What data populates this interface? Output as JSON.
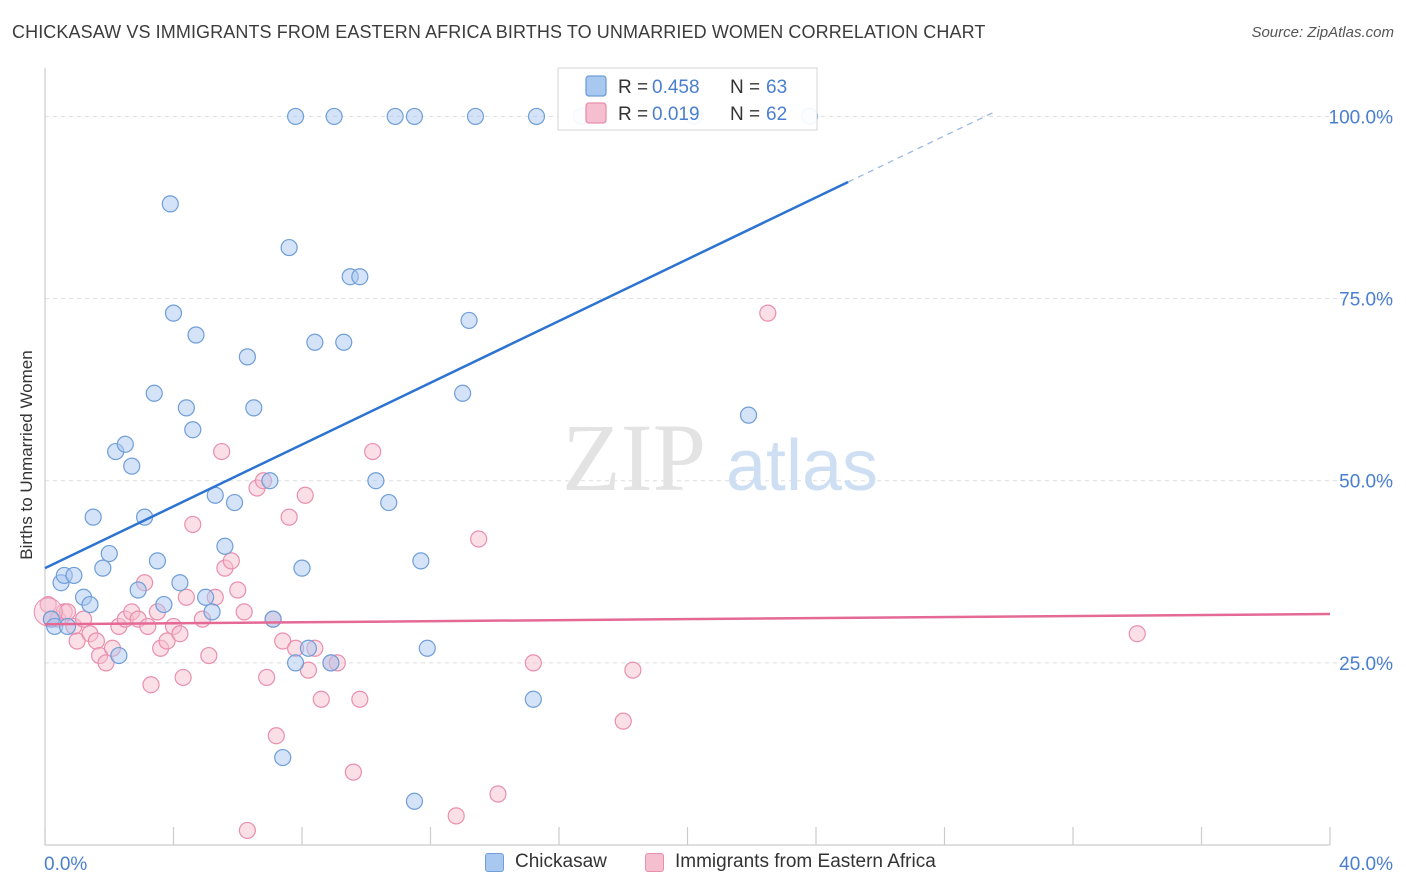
{
  "title": "CHICKASAW VS IMMIGRANTS FROM EASTERN AFRICA BIRTHS TO UNMARRIED WOMEN CORRELATION CHART",
  "source": "Source: ZipAtlas.com",
  "watermark": {
    "zip": "ZIP",
    "atlas": "atlas"
  },
  "colors": {
    "blue_fill": "#a9c8f0",
    "blue_stroke": "#6f9ed8",
    "blue_line": "#2c73d2",
    "pink_fill": "#f6bfd0",
    "pink_stroke": "#e98fae",
    "pink_line": "#e46a95",
    "tick_text": "#4a7fcf",
    "grid": "#dddddd"
  },
  "chart_data": {
    "type": "scatter",
    "title": "CHICKASAW VS IMMIGRANTS FROM EASTERN AFRICA BIRTHS TO UNMARRIED WOMEN CORRELATION CHART",
    "xlabel": "",
    "ylabel": "Births to Unmarried Women",
    "xlim": [
      0,
      40
    ],
    "ylim": [
      0,
      105
    ],
    "x_tick_labels": [
      {
        "value": 0,
        "label": "0.0%"
      },
      {
        "value": 40,
        "label": "40.0%"
      }
    ],
    "y_tick_labels": [
      {
        "value": 25,
        "label": "25.0%"
      },
      {
        "value": 50,
        "label": "50.0%"
      },
      {
        "value": 75,
        "label": "75.0%"
      },
      {
        "value": 100,
        "label": "100.0%"
      }
    ],
    "grid": "horizontal-dashed",
    "legend_placement": "top-center",
    "stats": [
      {
        "r_label": "R =",
        "r_value": "0.458",
        "n_label": "N =",
        "n_value": "63"
      },
      {
        "r_label": "R =",
        "r_value": "0.019",
        "n_label": "N =",
        "n_value": "62"
      }
    ],
    "series": [
      {
        "name": "Chickasaw",
        "color": "blue",
        "trend": {
          "x0": 0,
          "y0": 38,
          "x1": 25,
          "y1": 91,
          "dashed_x1": 29.5,
          "dashed_y1": 100.5
        },
        "points": [
          [
            0.2,
            31
          ],
          [
            0.3,
            30
          ],
          [
            0.5,
            36
          ],
          [
            0.6,
            37
          ],
          [
            0.7,
            30
          ],
          [
            0.9,
            37
          ],
          [
            1.2,
            34
          ],
          [
            1.4,
            33
          ],
          [
            1.5,
            45
          ],
          [
            1.8,
            38
          ],
          [
            2.0,
            40
          ],
          [
            2.2,
            54
          ],
          [
            2.3,
            26
          ],
          [
            2.5,
            55
          ],
          [
            2.7,
            52
          ],
          [
            2.9,
            35
          ],
          [
            3.1,
            45
          ],
          [
            3.4,
            62
          ],
          [
            3.5,
            39
          ],
          [
            3.7,
            33
          ],
          [
            3.9,
            88
          ],
          [
            4.0,
            73
          ],
          [
            4.2,
            36
          ],
          [
            4.4,
            60
          ],
          [
            4.6,
            57
          ],
          [
            4.7,
            70
          ],
          [
            5.0,
            34
          ],
          [
            5.2,
            32
          ],
          [
            5.3,
            48
          ],
          [
            5.6,
            41
          ],
          [
            5.9,
            47
          ],
          [
            6.3,
            67
          ],
          [
            6.5,
            60
          ],
          [
            7.0,
            50
          ],
          [
            7.1,
            31
          ],
          [
            7.4,
            12
          ],
          [
            7.6,
            82
          ],
          [
            7.8,
            25
          ],
          [
            8.0,
            38
          ],
          [
            8.2,
            27
          ],
          [
            8.4,
            69
          ],
          [
            8.9,
            25
          ],
          [
            9.3,
            69
          ],
          [
            9.5,
            78
          ],
          [
            9.8,
            78
          ],
          [
            10.3,
            50
          ],
          [
            10.7,
            47
          ],
          [
            11.5,
            6
          ],
          [
            11.7,
            39
          ],
          [
            11.9,
            27
          ],
          [
            13.0,
            62
          ],
          [
            13.2,
            72
          ],
          [
            15.2,
            20
          ],
          [
            7.8,
            100
          ],
          [
            9.0,
            100
          ],
          [
            10.9,
            100
          ],
          [
            11.5,
            100
          ],
          [
            13.4,
            100
          ],
          [
            15.3,
            100
          ],
          [
            16.7,
            100
          ],
          [
            20.2,
            100
          ],
          [
            21.9,
            59
          ],
          [
            23.8,
            100
          ]
        ]
      },
      {
        "name": "Immigrants from Eastern Africa",
        "color": "pink",
        "trend": {
          "x0": 0,
          "y0": 30.3,
          "x1": 40,
          "y1": 31.7
        },
        "points": [
          [
            0.1,
            33
          ],
          [
            0.2,
            31
          ],
          [
            0.4,
            31
          ],
          [
            0.6,
            32
          ],
          [
            0.7,
            32
          ],
          [
            0.9,
            30
          ],
          [
            1.0,
            28
          ],
          [
            1.2,
            31
          ],
          [
            1.4,
            29
          ],
          [
            1.6,
            28
          ],
          [
            1.7,
            26
          ],
          [
            1.9,
            25
          ],
          [
            2.1,
            27
          ],
          [
            2.3,
            30
          ],
          [
            2.5,
            31
          ],
          [
            2.7,
            32
          ],
          [
            2.9,
            31
          ],
          [
            3.1,
            36
          ],
          [
            3.2,
            30
          ],
          [
            3.3,
            22
          ],
          [
            3.5,
            32
          ],
          [
            3.6,
            27
          ],
          [
            3.8,
            28
          ],
          [
            4.0,
            30
          ],
          [
            4.2,
            29
          ],
          [
            4.3,
            23
          ],
          [
            4.4,
            34
          ],
          [
            4.6,
            44
          ],
          [
            4.9,
            31
          ],
          [
            5.1,
            26
          ],
          [
            5.3,
            34
          ],
          [
            5.5,
            54
          ],
          [
            5.6,
            38
          ],
          [
            5.8,
            39
          ],
          [
            6.0,
            35
          ],
          [
            6.2,
            32
          ],
          [
            6.3,
            2
          ],
          [
            6.6,
            49
          ],
          [
            6.8,
            50
          ],
          [
            6.9,
            23
          ],
          [
            7.1,
            31
          ],
          [
            7.2,
            15
          ],
          [
            7.4,
            28
          ],
          [
            7.6,
            45
          ],
          [
            7.8,
            27
          ],
          [
            8.1,
            48
          ],
          [
            8.2,
            24
          ],
          [
            8.4,
            27
          ],
          [
            8.6,
            20
          ],
          [
            8.9,
            25
          ],
          [
            9.1,
            25
          ],
          [
            9.6,
            10
          ],
          [
            9.8,
            20
          ],
          [
            10.2,
            54
          ],
          [
            12.8,
            4
          ],
          [
            13.5,
            42
          ],
          [
            14.1,
            7
          ],
          [
            15.2,
            25
          ],
          [
            18.0,
            17
          ],
          [
            18.3,
            24
          ],
          [
            22.5,
            73
          ],
          [
            34.0,
            29
          ]
        ]
      }
    ]
  }
}
